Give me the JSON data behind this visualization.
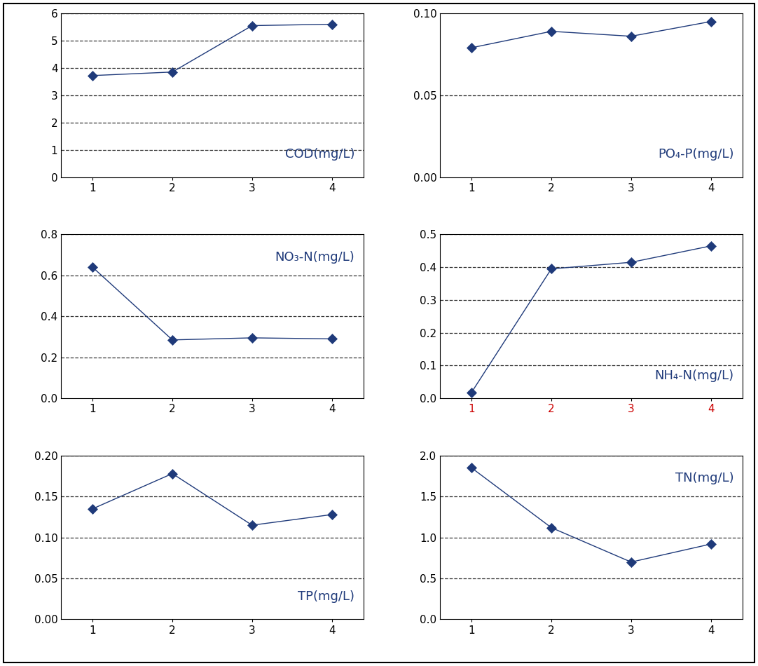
{
  "subplots": [
    {
      "title": "COD(mg/L)",
      "x": [
        1,
        2,
        3,
        4
      ],
      "y": [
        3.72,
        3.85,
        5.55,
        5.6
      ],
      "ylim": [
        0,
        6
      ],
      "yticks": [
        0,
        1,
        2,
        3,
        4,
        5,
        6
      ],
      "ytick_labels": [
        "0",
        "1",
        "2",
        "3",
        "4",
        "5",
        "6"
      ],
      "grid_yticks": [
        1,
        2,
        3,
        4,
        5,
        6
      ],
      "title_pos": "lower right",
      "xtick_color": "black"
    },
    {
      "title": "PO₄-P(mg/L)",
      "x": [
        1,
        2,
        3,
        4
      ],
      "y": [
        0.079,
        0.089,
        0.086,
        0.095
      ],
      "ylim": [
        0.0,
        0.1
      ],
      "yticks": [
        0.0,
        0.05,
        0.1
      ],
      "ytick_labels": [
        "0.00",
        "0.05",
        "0.10"
      ],
      "grid_yticks": [
        0.05
      ],
      "title_pos": "lower right",
      "xtick_color": "black"
    },
    {
      "title": "NO₃-N(mg/L)",
      "x": [
        1,
        2,
        3,
        4
      ],
      "y": [
        0.64,
        0.285,
        0.295,
        0.29
      ],
      "ylim": [
        0.0,
        0.8
      ],
      "yticks": [
        0.0,
        0.2,
        0.4,
        0.6,
        0.8
      ],
      "ytick_labels": [
        "0.0",
        "0.2",
        "0.4",
        "0.6",
        "0.8"
      ],
      "grid_yticks": [
        0.2,
        0.4,
        0.6,
        0.8
      ],
      "title_pos": "upper right",
      "xtick_color": "black"
    },
    {
      "title": "NH₄-N(mg/L)",
      "x": [
        1,
        2,
        3,
        4
      ],
      "y": [
        0.018,
        0.395,
        0.415,
        0.465
      ],
      "ylim": [
        0.0,
        0.5
      ],
      "yticks": [
        0.0,
        0.1,
        0.2,
        0.3,
        0.4,
        0.5
      ],
      "ytick_labels": [
        "0.0",
        "0.1",
        "0.2",
        "0.3",
        "0.4",
        "0.5"
      ],
      "grid_yticks": [
        0.1,
        0.2,
        0.3,
        0.4,
        0.5
      ],
      "title_pos": "lower right",
      "xtick_color": "#CC0000"
    },
    {
      "title": "TP(mg/L)",
      "x": [
        1,
        2,
        3,
        4
      ],
      "y": [
        0.135,
        0.178,
        0.115,
        0.128
      ],
      "ylim": [
        0.0,
        0.2
      ],
      "yticks": [
        0.0,
        0.05,
        0.1,
        0.15,
        0.2
      ],
      "ytick_labels": [
        "0.00",
        "0.05",
        "0.10",
        "0.15",
        "0.20"
      ],
      "grid_yticks": [
        0.05,
        0.1,
        0.15,
        0.2
      ],
      "title_pos": "lower right",
      "xtick_color": "black"
    },
    {
      "title": "TN(mg/L)",
      "x": [
        1,
        2,
        3,
        4
      ],
      "y": [
        1.85,
        1.12,
        0.7,
        0.92
      ],
      "ylim": [
        0.0,
        2.0
      ],
      "yticks": [
        0.0,
        0.5,
        1.0,
        1.5,
        2.0
      ],
      "ytick_labels": [
        "0.0",
        "0.5",
        "1.0",
        "1.5",
        "2.0"
      ],
      "grid_yticks": [
        0.5,
        1.0,
        1.5,
        2.0
      ],
      "title_pos": "upper right",
      "xtick_color": "black"
    }
  ],
  "line_color": "#1F3A7A",
  "marker": "D",
  "marker_size": 7,
  "marker_facecolor": "#1F3A7A",
  "grid_color": "#333333",
  "grid_linestyle": "--",
  "grid_linewidth": 0.9,
  "label_color": "#1F3A7A",
  "figsize": [
    10.82,
    9.5
  ],
  "dpi": 100,
  "outer_border_color": "black",
  "outer_border_linewidth": 1.5
}
